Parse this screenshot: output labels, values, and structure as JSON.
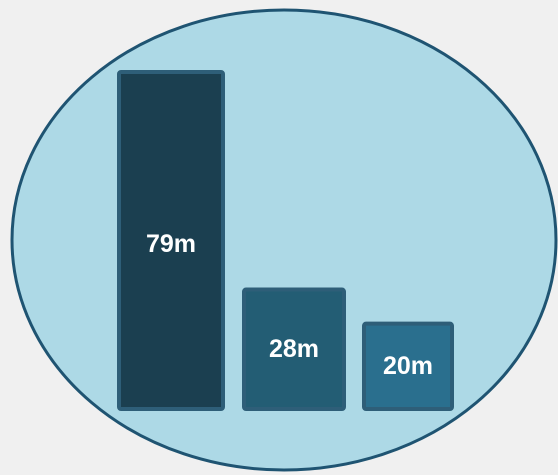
{
  "chart_data": {
    "type": "bar",
    "categories": [
      "",
      "",
      ""
    ],
    "values": [
      79,
      28,
      20
    ],
    "data_labels": [
      "79m",
      "28m",
      "20m"
    ],
    "unit": "m",
    "bar_colors": [
      "#1b3f50",
      "#235d74",
      "#2a6f8e"
    ],
    "bar_border_color": "#2e5e78",
    "background_shape": "ellipse",
    "background_fill": "#add9e6",
    "background_stroke": "#1f5472",
    "page_background": "#f0f0f0",
    "label_color": "#ffffff",
    "axes_visible": false,
    "grid": false,
    "legend": "none",
    "title": "",
    "xlabel": "",
    "ylabel": ""
  }
}
